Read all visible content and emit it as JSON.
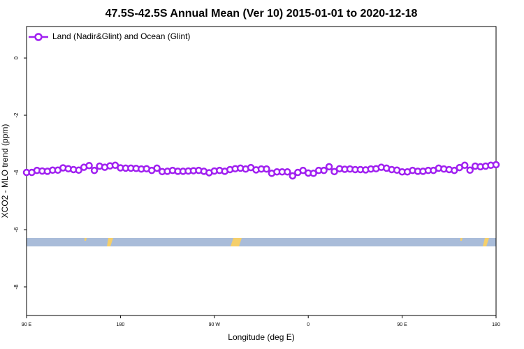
{
  "chart_data": {
    "type": "line",
    "title": "47.5S-42.5S Annual Mean (Ver 10)   2015-01-01 to 2020-12-18",
    "xlabel": "Longitude (deg E)",
    "ylabel": "XCO2 - MLO trend (ppm)",
    "x": [
      90,
      95,
      100,
      105,
      110,
      115,
      120,
      125,
      130,
      135,
      140,
      145,
      150,
      155,
      160,
      165,
      170,
      175,
      180,
      185,
      190,
      195,
      200,
      205,
      210,
      215,
      220,
      225,
      230,
      235,
      240,
      245,
      250,
      255,
      260,
      265,
      270,
      275,
      280,
      285,
      290,
      295,
      300,
      305,
      310,
      315,
      320,
      325,
      330,
      335,
      340,
      345,
      350,
      355,
      360,
      365,
      370,
      375,
      380,
      385,
      390,
      395,
      400,
      405,
      410,
      415,
      420,
      425,
      430,
      435,
      440,
      445,
      450,
      455,
      460,
      465,
      470,
      475,
      480,
      485,
      490,
      495,
      500,
      505,
      510,
      515,
      520,
      525,
      530,
      535,
      540
    ],
    "series": [
      {
        "name": "Land (Nadir&Glint) and Ocean (Glint)",
        "color": "#a020f0",
        "values": [
          -4.0,
          -4.0,
          -3.93,
          -3.95,
          -3.96,
          -3.92,
          -3.92,
          -3.84,
          -3.87,
          -3.9,
          -3.92,
          -3.82,
          -3.76,
          -3.93,
          -3.78,
          -3.82,
          -3.77,
          -3.75,
          -3.84,
          -3.85,
          -3.85,
          -3.86,
          -3.88,
          -3.87,
          -3.93,
          -3.85,
          -3.97,
          -3.96,
          -3.93,
          -3.96,
          -3.96,
          -3.95,
          -3.94,
          -3.93,
          -3.96,
          -4.01,
          -3.95,
          -3.93,
          -3.96,
          -3.9,
          -3.87,
          -3.85,
          -3.88,
          -3.83,
          -3.91,
          -3.88,
          -3.88,
          -4.03,
          -3.98,
          -3.98,
          -3.98,
          -4.12,
          -4.0,
          -3.93,
          -4.02,
          -4.03,
          -3.93,
          -3.93,
          -3.8,
          -3.97,
          -3.87,
          -3.89,
          -3.88,
          -3.9,
          -3.9,
          -3.91,
          -3.88,
          -3.87,
          -3.82,
          -3.85,
          -3.9,
          -3.92,
          -3.98,
          -3.98,
          -3.93,
          -3.96,
          -3.96,
          -3.93,
          -3.93,
          -3.85,
          -3.88,
          -3.9,
          -3.93,
          -3.83,
          -3.75,
          -3.92,
          -3.78,
          -3.8,
          -3.78,
          -3.75,
          -3.73
        ]
      }
    ],
    "xlim": [
      90,
      540
    ],
    "xticks": [
      {
        "value": 90,
        "label": "90 E"
      },
      180,
      {
        "value": 270,
        "label": "90 W"
      },
      {
        "value": 360,
        "label": "0"
      },
      {
        "value": 450,
        "label": "90 E"
      },
      {
        "value": 540,
        "label": "180"
      }
    ],
    "ylim": [
      -9,
      1.1
    ],
    "yticks": [
      0,
      -2,
      -4,
      -6,
      -8
    ],
    "legend": "upper left"
  }
}
